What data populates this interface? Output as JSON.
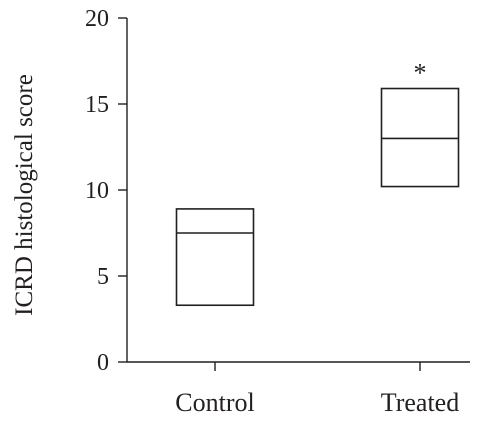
{
  "chart_data": {
    "type": "box",
    "ylabel": "ICRD histological score",
    "xlabel": "",
    "ylim": [
      0,
      20
    ],
    "yticks": [
      0,
      5,
      10,
      15,
      20
    ],
    "categories": [
      "Control",
      "Treated"
    ],
    "boxes": [
      {
        "category": "Control",
        "q1": 3.3,
        "median": 7.5,
        "q3": 8.9,
        "annotation": ""
      },
      {
        "category": "Treated",
        "q1": 10.2,
        "median": 13.0,
        "q3": 15.9,
        "annotation": "*"
      }
    ],
    "grid": false,
    "colors": {
      "ink": "#231f20",
      "fill": "#ffffff"
    }
  }
}
